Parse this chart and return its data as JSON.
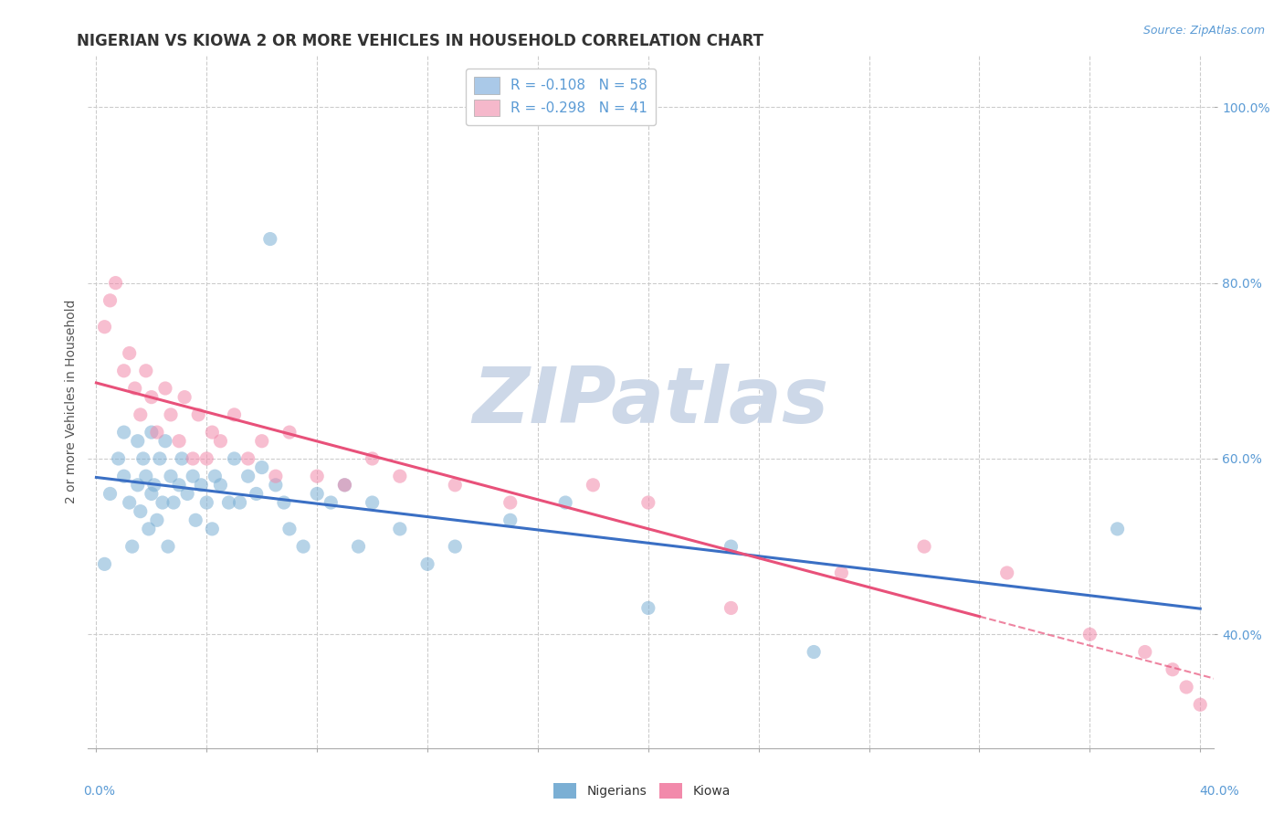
{
  "title": "NIGERIAN VS KIOWA 2 OR MORE VEHICLES IN HOUSEHOLD CORRELATION CHART",
  "source_text": "Source: ZipAtlas.com",
  "ylabel": "2 or more Vehicles in Household",
  "ytick_labels": [
    "40.0%",
    "60.0%",
    "80.0%",
    "100.0%"
  ],
  "ytick_values": [
    0.4,
    0.6,
    0.8,
    1.0
  ],
  "xlim": [
    -0.003,
    0.405
  ],
  "ylim": [
    0.27,
    1.06
  ],
  "legend_entries": [
    {
      "label": "R = -0.108   N = 58",
      "color": "#aac9e8"
    },
    {
      "label": "R = -0.298   N = 41",
      "color": "#f5b8cb"
    }
  ],
  "nigerians_color": "#7bafd4",
  "kiowa_color": "#f28aab",
  "regression_nigerian_color": "#3a6fc4",
  "regression_kiowa_color": "#e8517a",
  "background_color": "#ffffff",
  "grid_color": "#cccccc",
  "watermark_text": "ZIPatlas",
  "watermark_color": "#cdd8e8",
  "nigerians_x": [
    0.003,
    0.005,
    0.008,
    0.01,
    0.01,
    0.012,
    0.013,
    0.015,
    0.015,
    0.016,
    0.017,
    0.018,
    0.019,
    0.02,
    0.02,
    0.021,
    0.022,
    0.023,
    0.024,
    0.025,
    0.026,
    0.027,
    0.028,
    0.03,
    0.031,
    0.033,
    0.035,
    0.036,
    0.038,
    0.04,
    0.042,
    0.043,
    0.045,
    0.048,
    0.05,
    0.052,
    0.055,
    0.058,
    0.06,
    0.063,
    0.065,
    0.068,
    0.07,
    0.075,
    0.08,
    0.085,
    0.09,
    0.095,
    0.1,
    0.11,
    0.12,
    0.13,
    0.15,
    0.17,
    0.2,
    0.23,
    0.26,
    0.37
  ],
  "nigerians_y": [
    0.48,
    0.56,
    0.6,
    0.58,
    0.63,
    0.55,
    0.5,
    0.57,
    0.62,
    0.54,
    0.6,
    0.58,
    0.52,
    0.56,
    0.63,
    0.57,
    0.53,
    0.6,
    0.55,
    0.62,
    0.5,
    0.58,
    0.55,
    0.57,
    0.6,
    0.56,
    0.58,
    0.53,
    0.57,
    0.55,
    0.52,
    0.58,
    0.57,
    0.55,
    0.6,
    0.55,
    0.58,
    0.56,
    0.59,
    0.85,
    0.57,
    0.55,
    0.52,
    0.5,
    0.56,
    0.55,
    0.57,
    0.5,
    0.55,
    0.52,
    0.48,
    0.5,
    0.53,
    0.55,
    0.43,
    0.5,
    0.38,
    0.52
  ],
  "kiowa_x": [
    0.003,
    0.005,
    0.007,
    0.01,
    0.012,
    0.014,
    0.016,
    0.018,
    0.02,
    0.022,
    0.025,
    0.027,
    0.03,
    0.032,
    0.035,
    0.037,
    0.04,
    0.042,
    0.045,
    0.05,
    0.055,
    0.06,
    0.065,
    0.07,
    0.08,
    0.09,
    0.1,
    0.11,
    0.13,
    0.15,
    0.18,
    0.2,
    0.23,
    0.27,
    0.3,
    0.33,
    0.36,
    0.38,
    0.39,
    0.395,
    0.4
  ],
  "kiowa_y": [
    0.75,
    0.78,
    0.8,
    0.7,
    0.72,
    0.68,
    0.65,
    0.7,
    0.67,
    0.63,
    0.68,
    0.65,
    0.62,
    0.67,
    0.6,
    0.65,
    0.6,
    0.63,
    0.62,
    0.65,
    0.6,
    0.62,
    0.58,
    0.63,
    0.58,
    0.57,
    0.6,
    0.58,
    0.57,
    0.55,
    0.57,
    0.55,
    0.43,
    0.47,
    0.5,
    0.47,
    0.4,
    0.38,
    0.36,
    0.34,
    0.32
  ],
  "title_fontsize": 12,
  "axis_label_fontsize": 10,
  "tick_fontsize": 10,
  "legend_fontsize": 11,
  "scatter_size": 120,
  "scatter_alpha": 0.55,
  "kiowa_regression_dashed_start": 0.32
}
